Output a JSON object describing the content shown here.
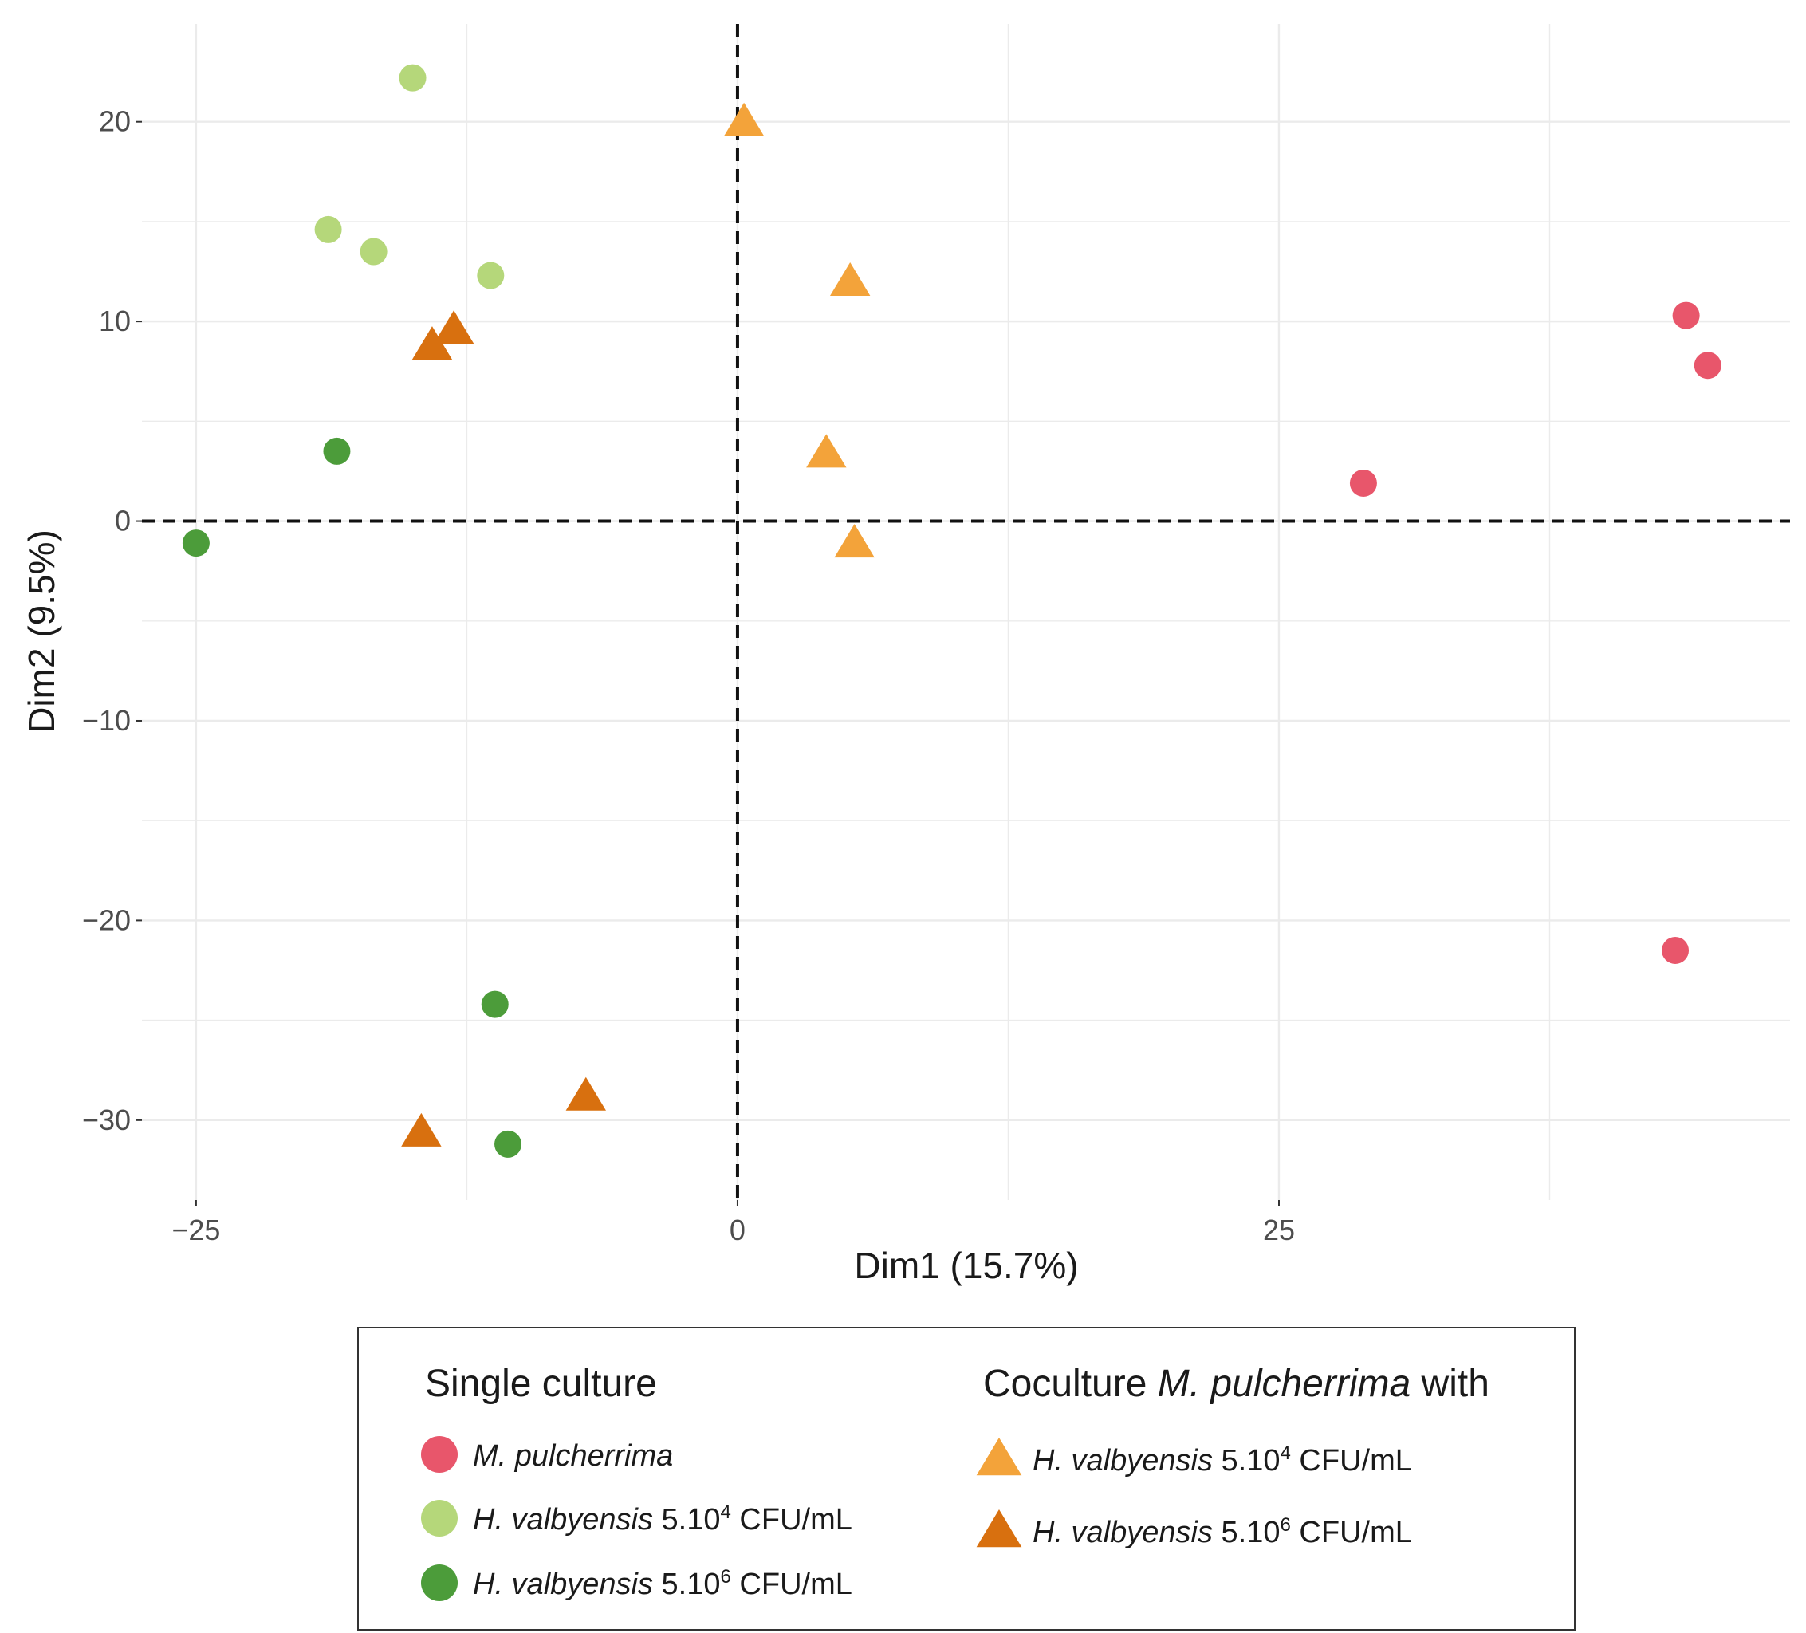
{
  "chart_data": {
    "type": "scatter",
    "xlabel": "Dim1 (15.7%)",
    "ylabel": "Dim2 (9.5%)",
    "xlim": [
      -27.5,
      48.6
    ],
    "ylim": [
      -34.0,
      24.9
    ],
    "x_ticks": [
      -25,
      0,
      25
    ],
    "x_tick_labels": [
      "−25",
      "0",
      "25"
    ],
    "y_ticks": [
      20,
      10,
      0,
      -10,
      -20,
      -30
    ],
    "y_tick_labels": [
      "20",
      "10",
      "0",
      "−10",
      "−20",
      "−30"
    ],
    "grid": true,
    "reference_lines": {
      "x": 0,
      "y": 0,
      "style": "dashed"
    },
    "series": [
      {
        "name": "M. pulcherrima",
        "group": "single",
        "shape": "circle",
        "color": "#e8566b",
        "points": [
          [
            43.8,
            10.3
          ],
          [
            44.8,
            7.8
          ],
          [
            28.9,
            1.9
          ],
          [
            43.3,
            -21.5
          ]
        ]
      },
      {
        "name": "H. valbyensis 5.10^4 CFU/mL",
        "group": "single",
        "shape": "circle",
        "color": "#b5d77a",
        "points": [
          [
            -15.0,
            22.2
          ],
          [
            -18.9,
            14.6
          ],
          [
            -16.8,
            13.5
          ],
          [
            -11.4,
            12.3
          ]
        ]
      },
      {
        "name": "H. valbyensis 5.10^6 CFU/mL",
        "group": "single",
        "shape": "circle",
        "color": "#4c9c3a",
        "points": [
          [
            -18.5,
            3.5
          ],
          [
            -25.0,
            -1.1
          ],
          [
            -11.2,
            -24.2
          ],
          [
            -10.6,
            -31.2
          ]
        ]
      },
      {
        "name": "H. valbyensis 5.10^4 CFU/mL",
        "group": "coculture",
        "shape": "triangle",
        "color": "#f3a33a",
        "points": [
          [
            0.3,
            20.0
          ],
          [
            5.2,
            12.0
          ],
          [
            4.1,
            3.4
          ],
          [
            5.4,
            -1.1
          ]
        ]
      },
      {
        "name": "H. valbyensis 5.10^6 CFU/mL",
        "group": "coculture",
        "shape": "triangle",
        "color": "#d8700f",
        "points": [
          [
            -14.1,
            8.8
          ],
          [
            -13.1,
            9.6
          ],
          [
            -14.6,
            -30.6
          ],
          [
            -7.0,
            -28.8
          ]
        ]
      }
    ]
  },
  "legend": {
    "single_title": "Single culture",
    "coculture_title_prefix": "Coculture ",
    "coculture_title_species": "M. pulcherrima",
    "coculture_title_suffix": " with",
    "single_items": [
      {
        "species": "M. pulcherrima",
        "conc": "",
        "exp": "",
        "unit": ""
      },
      {
        "species": "H. valbyensis",
        "conc": " 5.10",
        "exp": "4",
        "unit": " CFU/mL"
      },
      {
        "species": "H. valbyensis",
        "conc": " 5.10",
        "exp": "6",
        "unit": " CFU/mL"
      }
    ],
    "coculture_items": [
      {
        "species": "H. valbyensis",
        "conc": " 5.10",
        "exp": "4",
        "unit": " CFU/mL"
      },
      {
        "species": "H. valbyensis",
        "conc": " 5.10",
        "exp": "6",
        "unit": " CFU/mL"
      }
    ]
  }
}
